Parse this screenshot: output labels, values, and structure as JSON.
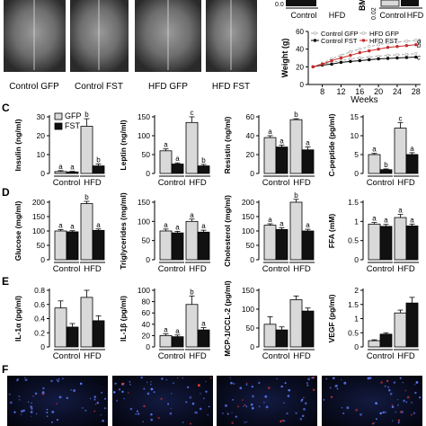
{
  "xray": {
    "labels": [
      "Control GFP",
      "Control FST",
      "HFD GFP",
      "HFD FST"
    ]
  },
  "panel_labels": {
    "c": "C",
    "d": "D",
    "e": "E",
    "f": "F"
  },
  "colors": {
    "gfp_bar": "#d9d9d9",
    "fst_bar": "#111111",
    "red_series": "#c62828",
    "fluor_bg": "#05060f"
  },
  "top_right": {
    "small_axis_label": "BM",
    "small_tick_label": "0.02",
    "small_tick_top": "0.0",
    "small_categories": [
      "Control",
      "HFD"
    ]
  },
  "chart_data": [
    {
      "type": "line",
      "id": "weight",
      "ylabel": "Weight (g)",
      "xlabel": "Weeks",
      "x_ticks": [
        8,
        12,
        16,
        20,
        24,
        28
      ],
      "y_ticks": [
        0,
        20,
        40,
        60
      ],
      "ylim": [
        0,
        60
      ],
      "xlim": [
        5,
        29
      ],
      "x": [
        6,
        8,
        10,
        12,
        14,
        16,
        18,
        20,
        22,
        24,
        26,
        28
      ],
      "series": [
        {
          "name": "Control GFP",
          "values": [
            20,
            23,
            25,
            27,
            29,
            30,
            31,
            32,
            33,
            33.5,
            34,
            35
          ]
        },
        {
          "name": "Control FST",
          "values": [
            20,
            22,
            23,
            25,
            26,
            27,
            28,
            29,
            29.5,
            30,
            30.5,
            31
          ]
        },
        {
          "name": "HFD GFP",
          "values": [
            20,
            24,
            29,
            33,
            37,
            40,
            43,
            45,
            47,
            48,
            49,
            50
          ]
        },
        {
          "name": "HFD FST",
          "values": [
            20,
            23,
            27,
            30,
            33,
            36,
            38,
            40,
            42,
            43,
            44,
            45
          ]
        }
      ],
      "end_letters": [
        "a",
        "b",
        "c"
      ],
      "legend_columns": [
        [
          "Control GFP",
          "Control FST"
        ],
        [
          "HFD GFP",
          "HFD FST"
        ]
      ]
    },
    {
      "type": "bar",
      "id": "insulin",
      "ylabel": "Insulin (ng/ml)",
      "categories": [
        "Control",
        "HFD"
      ],
      "y_ticks": [
        0,
        10,
        20,
        30
      ],
      "ylim": [
        0,
        30
      ],
      "series": [
        {
          "name": "GFP",
          "values": [
            1,
            25
          ],
          "errors": [
            0.5,
            4
          ]
        },
        {
          "name": "FST",
          "values": [
            0.8,
            4
          ],
          "errors": [
            0.3,
            1
          ]
        }
      ],
      "letters": [
        "a",
        "a",
        "b",
        "b"
      ],
      "legend": [
        "GFP",
        "FST"
      ]
    },
    {
      "type": "bar",
      "id": "leptin",
      "ylabel": "Leptin (ng/ml)",
      "categories": [
        "Control",
        "HFD"
      ],
      "y_ticks": [
        0,
        50,
        100,
        150
      ],
      "ylim": [
        0,
        150
      ],
      "series": [
        {
          "name": "GFP",
          "values": [
            60,
            135
          ],
          "errors": [
            5,
            15
          ]
        },
        {
          "name": "FST",
          "values": [
            25,
            20
          ],
          "errors": [
            3,
            4
          ]
        }
      ],
      "letters": [
        "a",
        "a",
        "c",
        "b"
      ]
    },
    {
      "type": "bar",
      "id": "resistin",
      "ylabel": "Resistin (ng/ml)",
      "categories": [
        "Control",
        "HFD"
      ],
      "y_ticks": [
        0,
        20,
        40,
        60
      ],
      "ylim": [
        0,
        60
      ],
      "series": [
        {
          "name": "GFP",
          "values": [
            38,
            57
          ],
          "errors": [
            2,
            1
          ]
        },
        {
          "name": "FST",
          "values": [
            28,
            25
          ],
          "errors": [
            2,
            3
          ]
        }
      ],
      "letters": [
        "a",
        "a",
        "b",
        "a"
      ]
    },
    {
      "type": "bar",
      "id": "cpeptide",
      "ylabel": "C-peptide (pg/ml)",
      "categories": [
        "Control",
        "HFD"
      ],
      "y_ticks": [
        0,
        5,
        10,
        15
      ],
      "ylim": [
        0,
        15
      ],
      "series": [
        {
          "name": "GFP",
          "values": [
            5,
            12
          ],
          "errors": [
            0.3,
            1.5
          ]
        },
        {
          "name": "FST",
          "values": [
            1,
            5
          ],
          "errors": [
            0.2,
            0.5
          ]
        }
      ],
      "letters": [
        "a",
        "b",
        "c",
        "a"
      ]
    },
    {
      "type": "bar",
      "id": "glucose",
      "ylabel": "Glucose (mg/ml)",
      "categories": [
        "Control",
        "HFD"
      ],
      "y_ticks": [
        0,
        50,
        100,
        150,
        200
      ],
      "ylim": [
        0,
        200
      ],
      "series": [
        {
          "name": "GFP",
          "values": [
            100,
            195
          ],
          "errors": [
            5,
            8
          ]
        },
        {
          "name": "FST",
          "values": [
            97,
            102
          ],
          "errors": [
            4,
            5
          ]
        }
      ],
      "letters": [
        "a",
        "a",
        "b",
        "a"
      ]
    },
    {
      "type": "bar",
      "id": "triglycerides",
      "ylabel": "Triglycerides (mg/ml)",
      "categories": [
        "Control",
        "HFD"
      ],
      "y_ticks": [
        0,
        50,
        100,
        150
      ],
      "ylim": [
        0,
        150
      ],
      "series": [
        {
          "name": "GFP",
          "values": [
            75,
            100
          ],
          "errors": [
            5,
            6
          ]
        },
        {
          "name": "FST",
          "values": [
            70,
            72
          ],
          "errors": [
            4,
            5
          ]
        }
      ],
      "letters": [
        "a",
        "a",
        "a",
        "a"
      ]
    },
    {
      "type": "bar",
      "id": "cholesterol",
      "ylabel": "Cholesterol (mg/ml)",
      "categories": [
        "Control",
        "HFD"
      ],
      "y_ticks": [
        0,
        50,
        100,
        150,
        200
      ],
      "ylim": [
        0,
        200
      ],
      "series": [
        {
          "name": "GFP",
          "values": [
            120,
            200
          ],
          "errors": [
            5,
            10
          ]
        },
        {
          "name": "FST",
          "values": [
            105,
            100
          ],
          "errors": [
            6,
            6
          ]
        }
      ],
      "letters": [
        "a",
        "a",
        "b",
        "a"
      ]
    },
    {
      "type": "bar",
      "id": "ffa",
      "ylabel": "FFA (mM)",
      "categories": [
        "Control",
        "HFD"
      ],
      "y_ticks": [
        0,
        0.5,
        1.0,
        1.5
      ],
      "ylim": [
        0,
        1.5
      ],
      "series": [
        {
          "name": "GFP",
          "values": [
            0.93,
            1.1
          ],
          "errors": [
            0.04,
            0.08
          ]
        },
        {
          "name": "FST",
          "values": [
            0.87,
            0.88
          ],
          "errors": [
            0.05,
            0.05
          ]
        }
      ],
      "letters": [
        "a",
        "a",
        "a",
        "a"
      ]
    },
    {
      "type": "bar",
      "id": "il1a",
      "ylabel": "IL-1α (pg/ml)",
      "categories": [
        "Control",
        "HFD"
      ],
      "y_ticks": [
        0,
        0.2,
        0.4,
        0.6,
        0.8
      ],
      "ylim": [
        0,
        0.8
      ],
      "series": [
        {
          "name": "GFP",
          "values": [
            0.55,
            0.7
          ],
          "errors": [
            0.1,
            0.1
          ]
        },
        {
          "name": "FST",
          "values": [
            0.28,
            0.37
          ],
          "errors": [
            0.05,
            0.07
          ]
        }
      ],
      "letters": []
    },
    {
      "type": "bar",
      "id": "il1b",
      "ylabel": "IL-1β (pg/ml)",
      "categories": [
        "Control",
        "HFD"
      ],
      "y_ticks": [
        0,
        20,
        40,
        60,
        80,
        100
      ],
      "ylim": [
        0,
        100
      ],
      "series": [
        {
          "name": "GFP",
          "values": [
            20,
            75
          ],
          "errors": [
            3,
            15
          ]
        },
        {
          "name": "FST",
          "values": [
            18,
            30
          ],
          "errors": [
            3,
            4
          ]
        }
      ],
      "letters": [
        "a",
        "a",
        "b",
        "a"
      ]
    },
    {
      "type": "bar",
      "id": "mcp1",
      "ylabel": "MCP-1/CCL-2 (pg/ml)",
      "categories": [
        "Control",
        "HFD"
      ],
      "y_ticks": [
        0,
        50,
        100,
        150
      ],
      "ylim": [
        0,
        150
      ],
      "series": [
        {
          "name": "GFP",
          "values": [
            60,
            125
          ],
          "errors": [
            20,
            10
          ]
        },
        {
          "name": "FST",
          "values": [
            45,
            95
          ],
          "errors": [
            8,
            8
          ]
        }
      ],
      "letters": []
    },
    {
      "type": "bar",
      "id": "vegf",
      "ylabel": "VEGF (pg/ml)",
      "categories": [
        "Control",
        "HFD"
      ],
      "y_ticks": [
        0,
        0.5,
        1.0,
        1.5,
        2.0
      ],
      "ylim": [
        0,
        2.0
      ],
      "series": [
        {
          "name": "GFP",
          "values": [
            0.22,
            1.2
          ],
          "errors": [
            0.03,
            0.1
          ]
        },
        {
          "name": "FST",
          "values": [
            0.45,
            1.55
          ],
          "errors": [
            0.05,
            0.2
          ]
        }
      ],
      "letters": []
    }
  ]
}
